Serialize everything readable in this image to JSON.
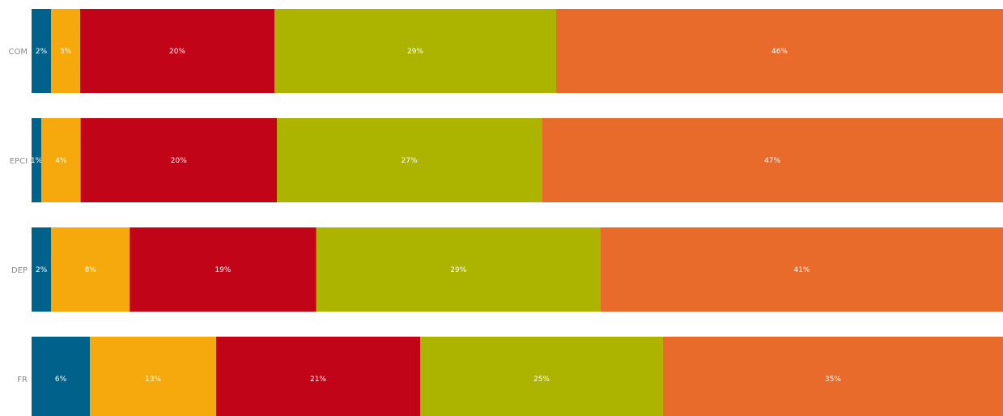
{
  "chart_data": {
    "type": "bar",
    "orientation": "horizontal",
    "stacked": true,
    "normalized": true,
    "categories": [
      "COM",
      "EPCI",
      "DEP",
      "FR"
    ],
    "value_unit": "%",
    "series": [
      {
        "color": "#00628a",
        "values": [
          2,
          1,
          2,
          6
        ],
        "labels": [
          "2%",
          "1%",
          "2%",
          "6%"
        ]
      },
      {
        "color": "#f6a90c",
        "values": [
          3,
          4,
          8,
          13
        ],
        "labels": [
          "3%",
          "4%",
          "8%",
          "13%"
        ]
      },
      {
        "color": "#c10418",
        "values": [
          20,
          20,
          19,
          21
        ],
        "labels": [
          "20%",
          "20%",
          "19%",
          "21%"
        ]
      },
      {
        "color": "#adb400",
        "values": [
          29,
          27,
          29,
          25
        ],
        "labels": [
          "29%",
          "27%",
          "29%",
          "25%"
        ]
      },
      {
        "color": "#e96b2c",
        "values": [
          46,
          47,
          41,
          35
        ],
        "labels": [
          "46%",
          "47%",
          "41%",
          "35%"
        ]
      }
    ],
    "grid": false,
    "legend": "none"
  }
}
